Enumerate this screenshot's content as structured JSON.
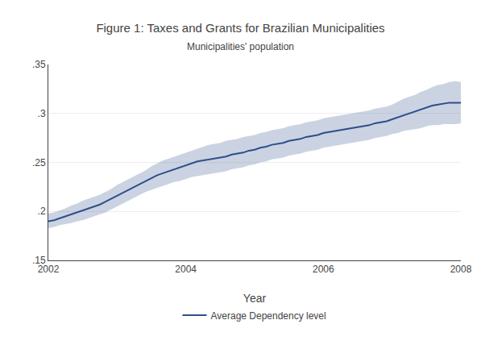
{
  "chart_data": {
    "type": "line",
    "title": "Figure 1: Taxes and Grants for Brazilian Municipalities",
    "subtitle": "Municipalities' population",
    "xlabel": "Year",
    "x": [
      2002.0,
      2002.083,
      2002.167,
      2002.25,
      2002.333,
      2002.417,
      2002.5,
      2002.583,
      2002.667,
      2002.75,
      2002.833,
      2002.917,
      2003.0,
      2003.083,
      2003.167,
      2003.25,
      2003.333,
      2003.417,
      2003.5,
      2003.583,
      2003.667,
      2003.75,
      2003.833,
      2003.917,
      2004.0,
      2004.083,
      2004.167,
      2004.25,
      2004.333,
      2004.417,
      2004.5,
      2004.583,
      2004.667,
      2004.75,
      2004.833,
      2004.917,
      2005.0,
      2005.083,
      2005.167,
      2005.25,
      2005.333,
      2005.417,
      2005.5,
      2005.583,
      2005.667,
      2005.75,
      2005.833,
      2005.917,
      2006.0,
      2006.083,
      2006.167,
      2006.25,
      2006.333,
      2006.417,
      2006.5,
      2006.583,
      2006.667,
      2006.75,
      2006.833,
      2006.917,
      2007.0,
      2007.083,
      2007.167,
      2007.25,
      2007.333,
      2007.417,
      2007.5,
      2007.583,
      2007.667,
      2007.75,
      2007.833,
      2007.917,
      2008.0
    ],
    "series": [
      {
        "name": "Average Dependency level",
        "color": "#2e4e8c",
        "values": [
          0.19,
          0.191,
          0.193,
          0.195,
          0.197,
          0.199,
          0.201,
          0.203,
          0.205,
          0.207,
          0.21,
          0.213,
          0.216,
          0.219,
          0.222,
          0.225,
          0.228,
          0.231,
          0.234,
          0.237,
          0.239,
          0.241,
          0.243,
          0.245,
          0.247,
          0.249,
          0.251,
          0.252,
          0.253,
          0.254,
          0.255,
          0.256,
          0.258,
          0.259,
          0.26,
          0.262,
          0.263,
          0.265,
          0.266,
          0.268,
          0.269,
          0.27,
          0.272,
          0.273,
          0.274,
          0.276,
          0.277,
          0.278,
          0.28,
          0.281,
          0.282,
          0.283,
          0.284,
          0.285,
          0.286,
          0.287,
          0.288,
          0.29,
          0.291,
          0.292,
          0.294,
          0.296,
          0.298,
          0.3,
          0.302,
          0.304,
          0.306,
          0.308,
          0.309,
          0.31,
          0.311,
          0.311,
          0.311
        ],
        "lower": [
          0.183,
          0.184,
          0.186,
          0.187,
          0.188,
          0.19,
          0.191,
          0.193,
          0.195,
          0.197,
          0.199,
          0.202,
          0.205,
          0.208,
          0.211,
          0.214,
          0.217,
          0.22,
          0.222,
          0.224,
          0.226,
          0.228,
          0.23,
          0.231,
          0.233,
          0.235,
          0.236,
          0.237,
          0.238,
          0.239,
          0.24,
          0.241,
          0.243,
          0.244,
          0.245,
          0.247,
          0.248,
          0.25,
          0.251,
          0.253,
          0.254,
          0.255,
          0.257,
          0.258,
          0.259,
          0.261,
          0.262,
          0.263,
          0.265,
          0.266,
          0.267,
          0.268,
          0.269,
          0.27,
          0.271,
          0.272,
          0.273,
          0.275,
          0.276,
          0.277,
          0.279,
          0.28,
          0.282,
          0.283,
          0.284,
          0.285,
          0.287,
          0.288,
          0.288,
          0.289,
          0.289,
          0.289,
          0.29
        ],
        "upper": [
          0.198,
          0.199,
          0.201,
          0.203,
          0.206,
          0.208,
          0.211,
          0.213,
          0.215,
          0.217,
          0.22,
          0.223,
          0.227,
          0.23,
          0.233,
          0.236,
          0.239,
          0.242,
          0.246,
          0.249,
          0.252,
          0.254,
          0.256,
          0.258,
          0.26,
          0.262,
          0.264,
          0.266,
          0.268,
          0.269,
          0.27,
          0.272,
          0.273,
          0.274,
          0.276,
          0.277,
          0.278,
          0.28,
          0.281,
          0.283,
          0.284,
          0.285,
          0.287,
          0.288,
          0.289,
          0.291,
          0.292,
          0.293,
          0.295,
          0.296,
          0.297,
          0.298,
          0.299,
          0.3,
          0.301,
          0.302,
          0.303,
          0.305,
          0.306,
          0.307,
          0.309,
          0.312,
          0.315,
          0.317,
          0.319,
          0.322,
          0.324,
          0.327,
          0.329,
          0.33,
          0.332,
          0.333,
          0.332
        ]
      }
    ],
    "xlim": [
      2002,
      2008
    ],
    "ylim": [
      0.15,
      0.35
    ],
    "xticks": [
      2002,
      2004,
      2006,
      2008
    ],
    "yticks": [
      {
        "value": 0.15,
        "label": ".15"
      },
      {
        "value": 0.2,
        "label": ".2"
      },
      {
        "value": 0.25,
        "label": ".25"
      },
      {
        "value": 0.3,
        "label": ".3"
      },
      {
        "value": 0.35,
        "label": ".35"
      }
    ],
    "grid": true,
    "legend": "bottom"
  }
}
